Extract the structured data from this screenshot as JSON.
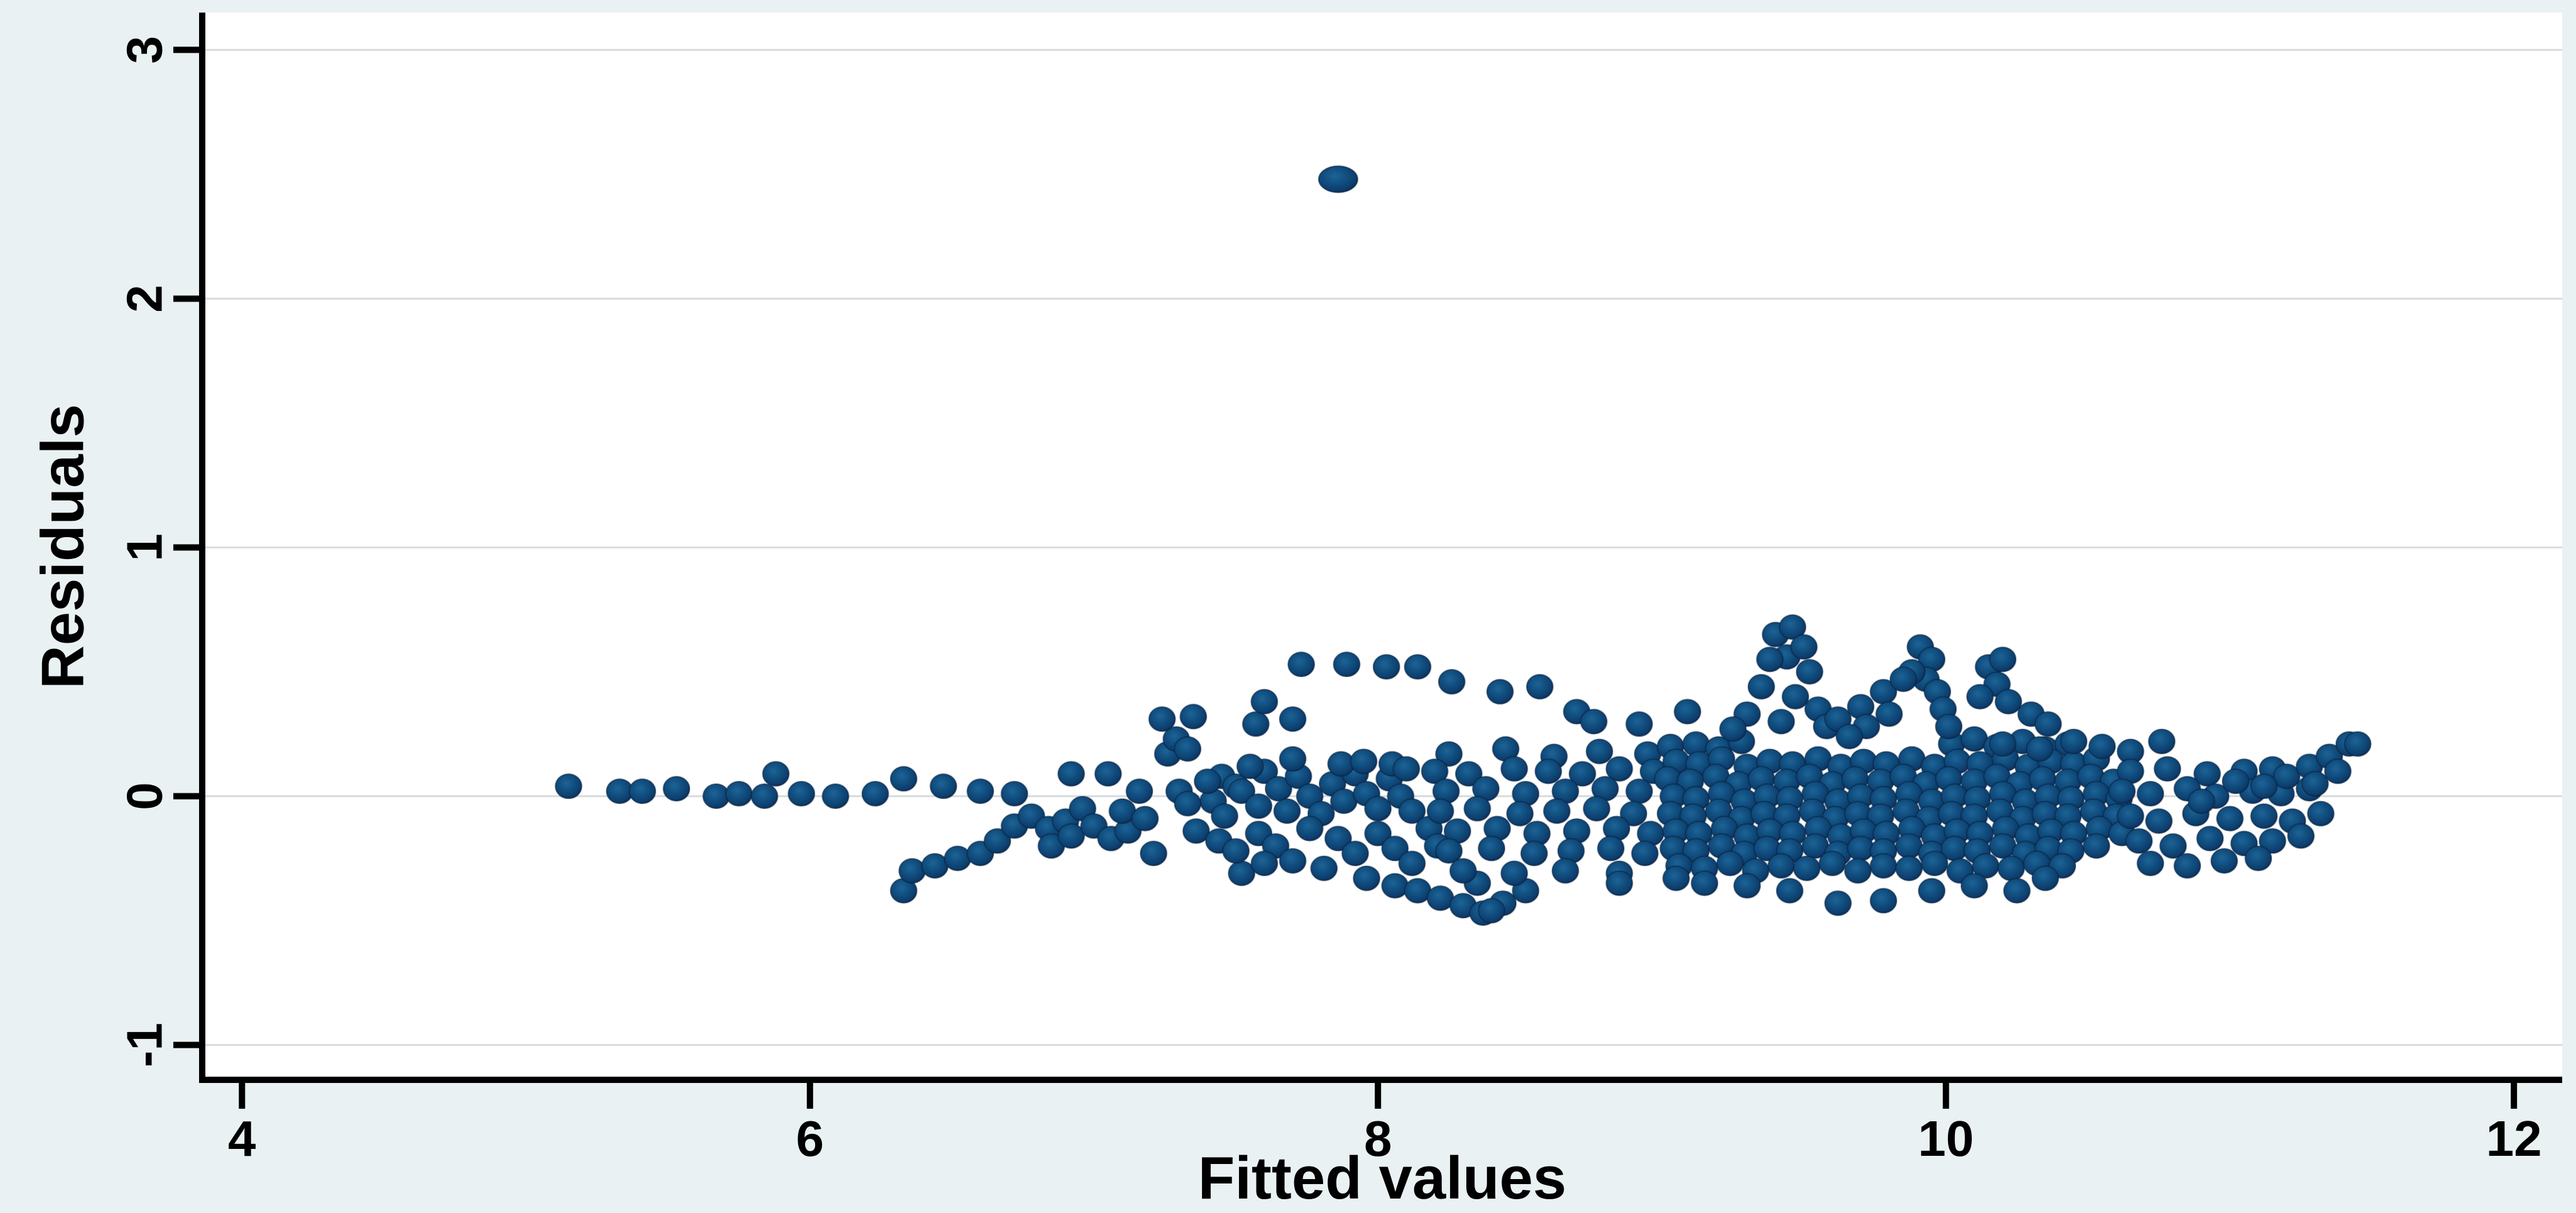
{
  "figure": {
    "background": "#e9f1f2",
    "plot_background": "#ffffff",
    "gridline_color": "#d8dcdd",
    "axis_color": "#000000",
    "marker_core_color": "#1e6396",
    "marker_mid_color": "#115081",
    "marker_edge_color": "#0a2a52"
  },
  "chart_data": {
    "type": "scatter",
    "title": "",
    "xlabel": "Fitted values",
    "ylabel": "Residuals",
    "xlim": [
      3.86,
      12.17
    ],
    "ylim": [
      -1.14,
      3.15
    ],
    "xticks": [
      4,
      6,
      8,
      10,
      12
    ],
    "yticks": [
      -1,
      0,
      1,
      2,
      3
    ],
    "grid": "horizontal-only",
    "legend": "none",
    "marker_rx_px": 21,
    "marker_ry_px": 19.5,
    "outlier": [
      7.86,
      2.48
    ],
    "points": [
      [
        5.15,
        0.04
      ],
      [
        5.33,
        0.02
      ],
      [
        5.41,
        0.02
      ],
      [
        5.53,
        0.03
      ],
      [
        5.67,
        0.0
      ],
      [
        5.75,
        0.01
      ],
      [
        5.84,
        0.0
      ],
      [
        5.88,
        0.09
      ],
      [
        5.97,
        0.01
      ],
      [
        6.09,
        0.0
      ],
      [
        6.23,
        0.01
      ],
      [
        6.33,
        0.07
      ],
      [
        6.47,
        0.04
      ],
      [
        6.6,
        0.02
      ],
      [
        6.72,
        0.01
      ],
      [
        6.33,
        -0.38
      ],
      [
        6.36,
        -0.3
      ],
      [
        6.44,
        -0.28
      ],
      [
        6.52,
        -0.25
      ],
      [
        6.6,
        -0.23
      ],
      [
        6.66,
        -0.18
      ],
      [
        6.72,
        -0.12
      ],
      [
        6.78,
        -0.08
      ],
      [
        6.84,
        -0.13
      ],
      [
        6.9,
        -0.1
      ],
      [
        6.96,
        -0.05
      ],
      [
        6.85,
        -0.2
      ],
      [
        6.92,
        -0.16
      ],
      [
        7.0,
        -0.12
      ],
      [
        7.06,
        -0.17
      ],
      [
        7.12,
        -0.14
      ],
      [
        7.21,
        -0.23
      ],
      [
        7.1,
        -0.06
      ],
      [
        7.18,
        -0.09
      ],
      [
        6.92,
        0.09
      ],
      [
        7.05,
        0.09
      ],
      [
        7.26,
        0.17
      ],
      [
        7.29,
        0.23
      ],
      [
        7.33,
        0.19
      ],
      [
        7.45,
        0.08
      ],
      [
        7.24,
        0.31
      ],
      [
        7.35,
        0.32
      ],
      [
        7.16,
        0.02
      ],
      [
        7.3,
        0.02
      ],
      [
        7.42,
        -0.02
      ],
      [
        7.5,
        0.04
      ],
      [
        7.73,
        0.53
      ],
      [
        7.89,
        0.53
      ],
      [
        8.03,
        0.52
      ],
      [
        8.14,
        0.52
      ],
      [
        8.26,
        0.46
      ],
      [
        8.43,
        0.42
      ],
      [
        8.57,
        0.44
      ],
      [
        8.7,
        0.34
      ],
      [
        8.76,
        0.3
      ],
      [
        8.92,
        0.29
      ],
      [
        9.09,
        0.34
      ],
      [
        7.57,
        0.29
      ],
      [
        7.7,
        0.31
      ],
      [
        7.6,
        0.38
      ],
      [
        7.33,
        -0.03
      ],
      [
        7.4,
        0.06
      ],
      [
        7.46,
        -0.08
      ],
      [
        7.52,
        0.02
      ],
      [
        7.58,
        -0.04
      ],
      [
        7.6,
        0.1
      ],
      [
        7.65,
        0.03
      ],
      [
        7.68,
        -0.06
      ],
      [
        7.72,
        0.08
      ],
      [
        7.76,
        0.0
      ],
      [
        7.8,
        -0.07
      ],
      [
        7.84,
        0.05
      ],
      [
        7.88,
        -0.02
      ],
      [
        7.92,
        0.09
      ],
      [
        7.96,
        0.01
      ],
      [
        8.0,
        -0.05
      ],
      [
        8.04,
        0.07
      ],
      [
        8.08,
        0.0
      ],
      [
        8.12,
        -0.06
      ],
      [
        7.55,
        0.12
      ],
      [
        7.87,
        0.13
      ],
      [
        7.95,
        0.14
      ],
      [
        8.05,
        0.13
      ],
      [
        7.7,
        0.15
      ],
      [
        8.1,
        0.11
      ],
      [
        7.36,
        -0.14
      ],
      [
        7.44,
        -0.18
      ],
      [
        7.52,
        -0.31
      ],
      [
        7.5,
        -0.22
      ],
      [
        7.58,
        -0.15
      ],
      [
        7.64,
        -0.2
      ],
      [
        7.7,
        -0.26
      ],
      [
        7.76,
        -0.13
      ],
      [
        7.81,
        -0.29
      ],
      [
        7.86,
        -0.17
      ],
      [
        7.92,
        -0.23
      ],
      [
        7.96,
        -0.33
      ],
      [
        8.0,
        -0.15
      ],
      [
        8.06,
        -0.21
      ],
      [
        8.12,
        -0.27
      ],
      [
        8.18,
        -0.13
      ],
      [
        8.21,
        -0.2
      ],
      [
        7.6,
        -0.27
      ],
      [
        8.06,
        -0.36
      ],
      [
        8.14,
        -0.38
      ],
      [
        8.22,
        -0.41
      ],
      [
        8.3,
        -0.44
      ],
      [
        8.37,
        -0.47
      ],
      [
        8.44,
        -0.43
      ],
      [
        8.52,
        -0.38
      ],
      [
        8.35,
        -0.35
      ],
      [
        8.4,
        -0.46
      ],
      [
        8.25,
        0.17
      ],
      [
        8.45,
        0.19
      ],
      [
        8.62,
        0.16
      ],
      [
        8.78,
        0.18
      ],
      [
        8.95,
        0.17
      ],
      [
        8.2,
        0.1
      ],
      [
        8.32,
        0.09
      ],
      [
        8.48,
        0.11
      ],
      [
        8.6,
        0.1
      ],
      [
        8.72,
        0.09
      ],
      [
        8.85,
        0.11
      ],
      [
        8.97,
        0.1
      ],
      [
        8.24,
        0.02
      ],
      [
        8.38,
        0.03
      ],
      [
        8.52,
        0.01
      ],
      [
        8.66,
        0.02
      ],
      [
        8.8,
        0.03
      ],
      [
        8.92,
        0.02
      ],
      [
        8.22,
        -0.06
      ],
      [
        8.35,
        -0.05
      ],
      [
        8.5,
        -0.07
      ],
      [
        8.63,
        -0.06
      ],
      [
        8.77,
        -0.05
      ],
      [
        8.9,
        -0.07
      ],
      [
        8.28,
        -0.14
      ],
      [
        8.42,
        -0.13
      ],
      [
        8.56,
        -0.15
      ],
      [
        8.7,
        -0.14
      ],
      [
        8.84,
        -0.13
      ],
      [
        8.96,
        -0.15
      ],
      [
        8.25,
        -0.22
      ],
      [
        8.4,
        -0.21
      ],
      [
        8.55,
        -0.23
      ],
      [
        8.68,
        -0.22
      ],
      [
        8.82,
        -0.21
      ],
      [
        8.94,
        -0.23
      ],
      [
        8.3,
        -0.3
      ],
      [
        8.48,
        -0.31
      ],
      [
        8.66,
        -0.3
      ],
      [
        8.85,
        -0.31
      ],
      [
        9.03,
        0.2
      ],
      [
        9.12,
        0.21
      ],
      [
        9.2,
        0.19
      ],
      [
        9.28,
        0.22
      ],
      [
        10.02,
        0.21
      ],
      [
        10.1,
        0.23
      ],
      [
        10.18,
        0.2
      ],
      [
        10.27,
        0.22
      ],
      [
        10.35,
        0.19
      ],
      [
        10.43,
        0.21
      ],
      [
        9.05,
        0.14
      ],
      [
        9.13,
        0.13
      ],
      [
        9.21,
        0.15
      ],
      [
        9.3,
        0.12
      ],
      [
        9.38,
        0.14
      ],
      [
        9.46,
        0.13
      ],
      [
        9.55,
        0.15
      ],
      [
        9.63,
        0.12
      ],
      [
        9.71,
        0.14
      ],
      [
        9.79,
        0.13
      ],
      [
        9.88,
        0.15
      ],
      [
        9.96,
        0.12
      ],
      [
        10.04,
        0.14
      ],
      [
        10.12,
        0.13
      ],
      [
        10.21,
        0.15
      ],
      [
        10.29,
        0.12
      ],
      [
        10.37,
        0.14
      ],
      [
        10.45,
        0.13
      ],
      [
        10.53,
        0.15
      ],
      [
        9.02,
        0.07
      ],
      [
        9.1,
        0.06
      ],
      [
        9.19,
        0.08
      ],
      [
        9.27,
        0.05
      ],
      [
        9.35,
        0.07
      ],
      [
        9.44,
        0.06
      ],
      [
        9.52,
        0.08
      ],
      [
        9.6,
        0.05
      ],
      [
        9.68,
        0.07
      ],
      [
        9.77,
        0.06
      ],
      [
        9.85,
        0.08
      ],
      [
        9.93,
        0.05
      ],
      [
        10.01,
        0.07
      ],
      [
        10.1,
        0.06
      ],
      [
        10.18,
        0.08
      ],
      [
        10.26,
        0.05
      ],
      [
        10.34,
        0.07
      ],
      [
        10.43,
        0.06
      ],
      [
        10.51,
        0.08
      ],
      [
        10.59,
        0.06
      ],
      [
        9.04,
        0.0
      ],
      [
        9.12,
        -0.01
      ],
      [
        9.21,
        0.01
      ],
      [
        9.29,
        -0.02
      ],
      [
        9.37,
        0.0
      ],
      [
        9.45,
        -0.01
      ],
      [
        9.54,
        0.01
      ],
      [
        9.62,
        -0.02
      ],
      [
        9.7,
        0.0
      ],
      [
        9.78,
        -0.01
      ],
      [
        9.87,
        0.01
      ],
      [
        9.95,
        -0.02
      ],
      [
        10.03,
        0.0
      ],
      [
        10.11,
        -0.01
      ],
      [
        10.2,
        0.01
      ],
      [
        10.28,
        -0.02
      ],
      [
        10.36,
        0.0
      ],
      [
        10.44,
        -0.01
      ],
      [
        10.53,
        0.01
      ],
      [
        10.61,
        -0.01
      ],
      [
        9.03,
        -0.07
      ],
      [
        9.11,
        -0.08
      ],
      [
        9.2,
        -0.06
      ],
      [
        9.28,
        -0.09
      ],
      [
        9.36,
        -0.07
      ],
      [
        9.44,
        -0.08
      ],
      [
        9.53,
        -0.06
      ],
      [
        9.61,
        -0.09
      ],
      [
        9.69,
        -0.07
      ],
      [
        9.77,
        -0.08
      ],
      [
        9.86,
        -0.06
      ],
      [
        9.94,
        -0.09
      ],
      [
        10.02,
        -0.07
      ],
      [
        10.1,
        -0.08
      ],
      [
        10.19,
        -0.06
      ],
      [
        10.27,
        -0.09
      ],
      [
        10.35,
        -0.07
      ],
      [
        10.43,
        -0.08
      ],
      [
        10.52,
        -0.06
      ],
      [
        10.6,
        -0.08
      ],
      [
        9.05,
        -0.14
      ],
      [
        9.13,
        -0.15
      ],
      [
        9.22,
        -0.13
      ],
      [
        9.3,
        -0.16
      ],
      [
        9.38,
        -0.14
      ],
      [
        9.46,
        -0.15
      ],
      [
        9.55,
        -0.13
      ],
      [
        9.63,
        -0.16
      ],
      [
        9.71,
        -0.14
      ],
      [
        9.79,
        -0.15
      ],
      [
        9.88,
        -0.13
      ],
      [
        9.96,
        -0.16
      ],
      [
        10.04,
        -0.14
      ],
      [
        10.12,
        -0.15
      ],
      [
        10.21,
        -0.13
      ],
      [
        10.29,
        -0.16
      ],
      [
        10.37,
        -0.14
      ],
      [
        10.45,
        -0.15
      ],
      [
        10.54,
        -0.13
      ],
      [
        10.62,
        -0.15
      ],
      [
        9.04,
        -0.21
      ],
      [
        9.12,
        -0.22
      ],
      [
        9.21,
        -0.2
      ],
      [
        9.29,
        -0.23
      ],
      [
        9.37,
        -0.21
      ],
      [
        9.45,
        -0.22
      ],
      [
        9.54,
        -0.2
      ],
      [
        9.62,
        -0.23
      ],
      [
        9.7,
        -0.21
      ],
      [
        9.78,
        -0.22
      ],
      [
        9.87,
        -0.2
      ],
      [
        9.95,
        -0.23
      ],
      [
        10.03,
        -0.21
      ],
      [
        10.11,
        -0.22
      ],
      [
        10.2,
        -0.2
      ],
      [
        10.28,
        -0.23
      ],
      [
        10.36,
        -0.21
      ],
      [
        10.44,
        -0.22
      ],
      [
        10.53,
        -0.2
      ],
      [
        9.06,
        -0.28
      ],
      [
        9.15,
        -0.29
      ],
      [
        9.24,
        -0.27
      ],
      [
        9.33,
        -0.3
      ],
      [
        9.42,
        -0.28
      ],
      [
        9.51,
        -0.29
      ],
      [
        9.6,
        -0.27
      ],
      [
        9.69,
        -0.3
      ],
      [
        9.78,
        -0.28
      ],
      [
        9.87,
        -0.29
      ],
      [
        9.96,
        -0.27
      ],
      [
        10.05,
        -0.3
      ],
      [
        10.14,
        -0.28
      ],
      [
        10.23,
        -0.29
      ],
      [
        10.32,
        -0.27
      ],
      [
        10.41,
        -0.28
      ],
      [
        9.4,
        0.65
      ],
      [
        9.46,
        0.68
      ],
      [
        9.44,
        0.56
      ],
      [
        9.5,
        0.6
      ],
      [
        9.38,
        0.55
      ],
      [
        9.52,
        0.5
      ],
      [
        9.35,
        0.44
      ],
      [
        9.47,
        0.4
      ],
      [
        9.55,
        0.35
      ],
      [
        9.42,
        0.3
      ],
      [
        9.58,
        0.28
      ],
      [
        9.3,
        0.33
      ],
      [
        9.25,
        0.27
      ],
      [
        9.91,
        0.6
      ],
      [
        9.95,
        0.55
      ],
      [
        9.93,
        0.47
      ],
      [
        9.97,
        0.42
      ],
      [
        9.99,
        0.35
      ],
      [
        10.01,
        0.28
      ],
      [
        9.88,
        0.5
      ],
      [
        9.62,
        0.31
      ],
      [
        9.7,
        0.36
      ],
      [
        9.78,
        0.42
      ],
      [
        9.85,
        0.47
      ],
      [
        9.8,
        0.33
      ],
      [
        9.72,
        0.28
      ],
      [
        9.66,
        0.24
      ],
      [
        10.15,
        0.52
      ],
      [
        10.2,
        0.55
      ],
      [
        10.18,
        0.45
      ],
      [
        10.22,
        0.38
      ],
      [
        10.12,
        0.4
      ],
      [
        10.3,
        0.33
      ],
      [
        10.36,
        0.29
      ],
      [
        10.2,
        0.21
      ],
      [
        10.33,
        0.19
      ],
      [
        10.45,
        0.22
      ],
      [
        10.55,
        0.2
      ],
      [
        10.65,
        0.18
      ],
      [
        10.76,
        0.22
      ],
      [
        10.65,
        0.1
      ],
      [
        10.78,
        0.11
      ],
      [
        10.92,
        0.09
      ],
      [
        11.05,
        0.1
      ],
      [
        11.15,
        0.11
      ],
      [
        10.62,
        0.02
      ],
      [
        10.72,
        0.01
      ],
      [
        10.85,
        0.03
      ],
      [
        10.95,
        0.0
      ],
      [
        11.08,
        0.02
      ],
      [
        11.18,
        0.01
      ],
      [
        11.28,
        0.03
      ],
      [
        10.65,
        -0.08
      ],
      [
        10.75,
        -0.1
      ],
      [
        10.88,
        -0.07
      ],
      [
        11.0,
        -0.09
      ],
      [
        11.12,
        -0.08
      ],
      [
        11.22,
        -0.1
      ],
      [
        11.32,
        -0.07
      ],
      [
        10.68,
        -0.18
      ],
      [
        10.8,
        -0.2
      ],
      [
        10.93,
        -0.17
      ],
      [
        11.05,
        -0.19
      ],
      [
        11.15,
        -0.18
      ],
      [
        11.25,
        -0.16
      ],
      [
        10.72,
        -0.27
      ],
      [
        10.85,
        -0.28
      ],
      [
        10.98,
        -0.26
      ],
      [
        11.1,
        -0.25
      ],
      [
        11.2,
        0.08
      ],
      [
        11.28,
        0.12
      ],
      [
        11.35,
        0.16
      ],
      [
        11.42,
        0.21
      ],
      [
        11.3,
        0.05
      ],
      [
        11.38,
        0.1
      ],
      [
        11.45,
        0.21
      ],
      [
        11.02,
        0.06
      ],
      [
        11.12,
        0.04
      ],
      [
        10.9,
        -0.02
      ],
      [
        9.62,
        -0.43
      ],
      [
        9.78,
        -0.42
      ],
      [
        9.3,
        -0.36
      ],
      [
        9.45,
        -0.38
      ],
      [
        9.95,
        -0.38
      ],
      [
        10.1,
        -0.36
      ],
      [
        10.25,
        -0.38
      ],
      [
        10.35,
        -0.33
      ],
      [
        8.85,
        -0.35
      ],
      [
        9.05,
        -0.33
      ],
      [
        9.15,
        -0.35
      ]
    ]
  }
}
